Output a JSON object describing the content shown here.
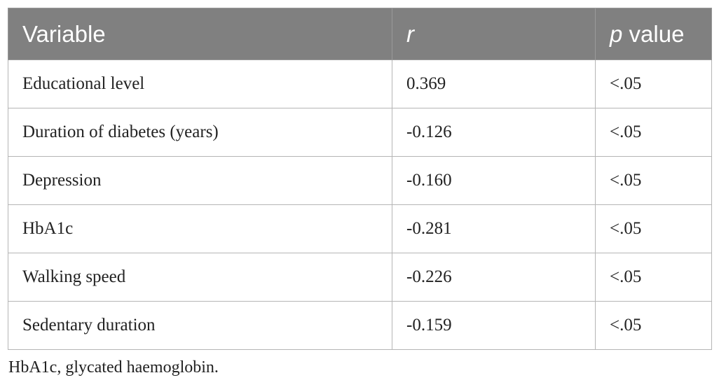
{
  "table": {
    "headers": {
      "variable": "Variable",
      "r": "r",
      "p_italic": "p",
      "p_rest": " value"
    },
    "rows": [
      {
        "variable": "Educational level",
        "r": "0.369",
        "p": "<.05"
      },
      {
        "variable": "Duration of diabetes (years)",
        "r": "-0.126",
        "p": "<.05"
      },
      {
        "variable": "Depression",
        "r": "-0.160",
        "p": "<.05"
      },
      {
        "variable": "HbA1c",
        "r": "-0.281",
        "p": "<.05"
      },
      {
        "variable": "Walking speed",
        "r": "-0.226",
        "p": "<.05"
      },
      {
        "variable": "Sedentary duration",
        "r": "-0.159",
        "p": "<.05"
      }
    ]
  },
  "footnote": "HbA1c, glycated haemoglobin.",
  "colors": {
    "header_bg": "#808080",
    "header_text": "#ffffff",
    "border": "#b5b5b5"
  }
}
